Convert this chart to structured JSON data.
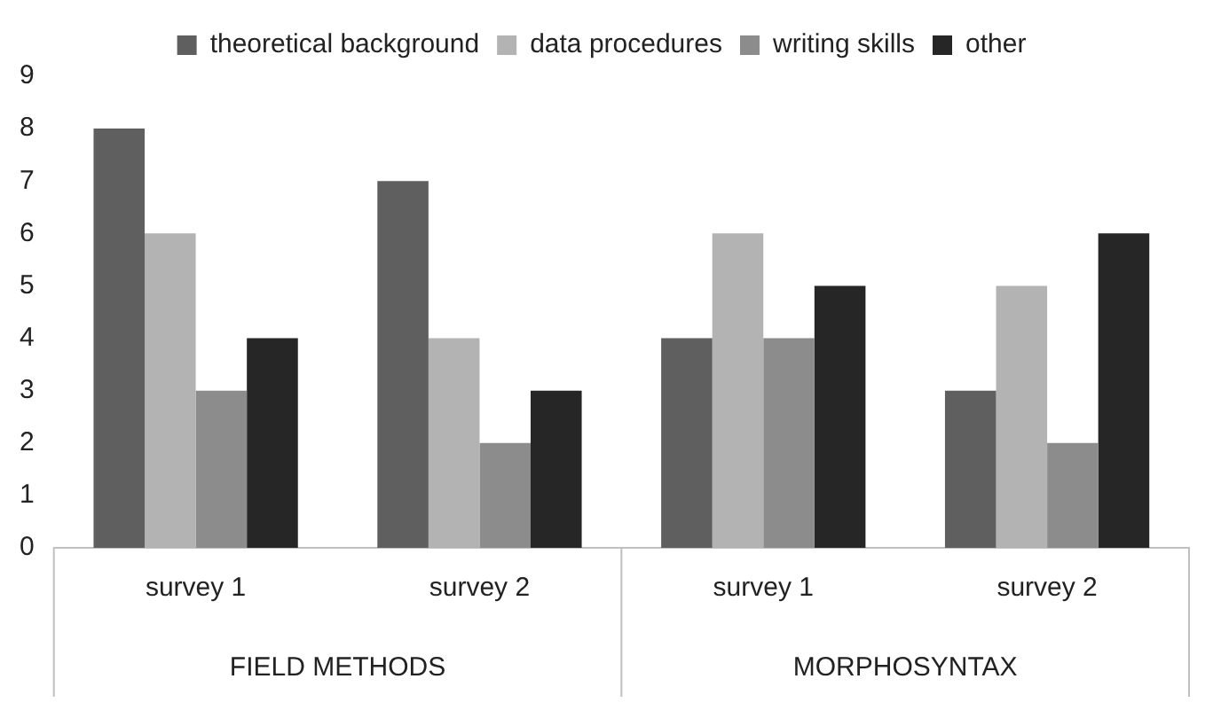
{
  "chart_data": {
    "type": "bar",
    "categories": [
      "survey 1",
      "survey 2",
      "survey 1",
      "survey 2"
    ],
    "series": [
      {
        "name": "theoretical background",
        "color": "#5f5f5f",
        "values": [
          8,
          7,
          4,
          3
        ]
      },
      {
        "name": "data procedures",
        "color": "#b3b3b3",
        "values": [
          6,
          4,
          6,
          5
        ]
      },
      {
        "name": "writing skills",
        "color": "#8c8c8c",
        "values": [
          3,
          2,
          4,
          2
        ]
      },
      {
        "name": "other",
        "color": "#262626",
        "values": [
          4,
          3,
          5,
          6
        ]
      }
    ],
    "ylim": [
      0,
      9
    ],
    "yticks": [
      0,
      1,
      2,
      3,
      4,
      5,
      6,
      7,
      8,
      9
    ],
    "grid": false,
    "legend": "top",
    "annotations": [
      "FIELD METHODS",
      "MORPHOSYNTAX"
    ]
  }
}
